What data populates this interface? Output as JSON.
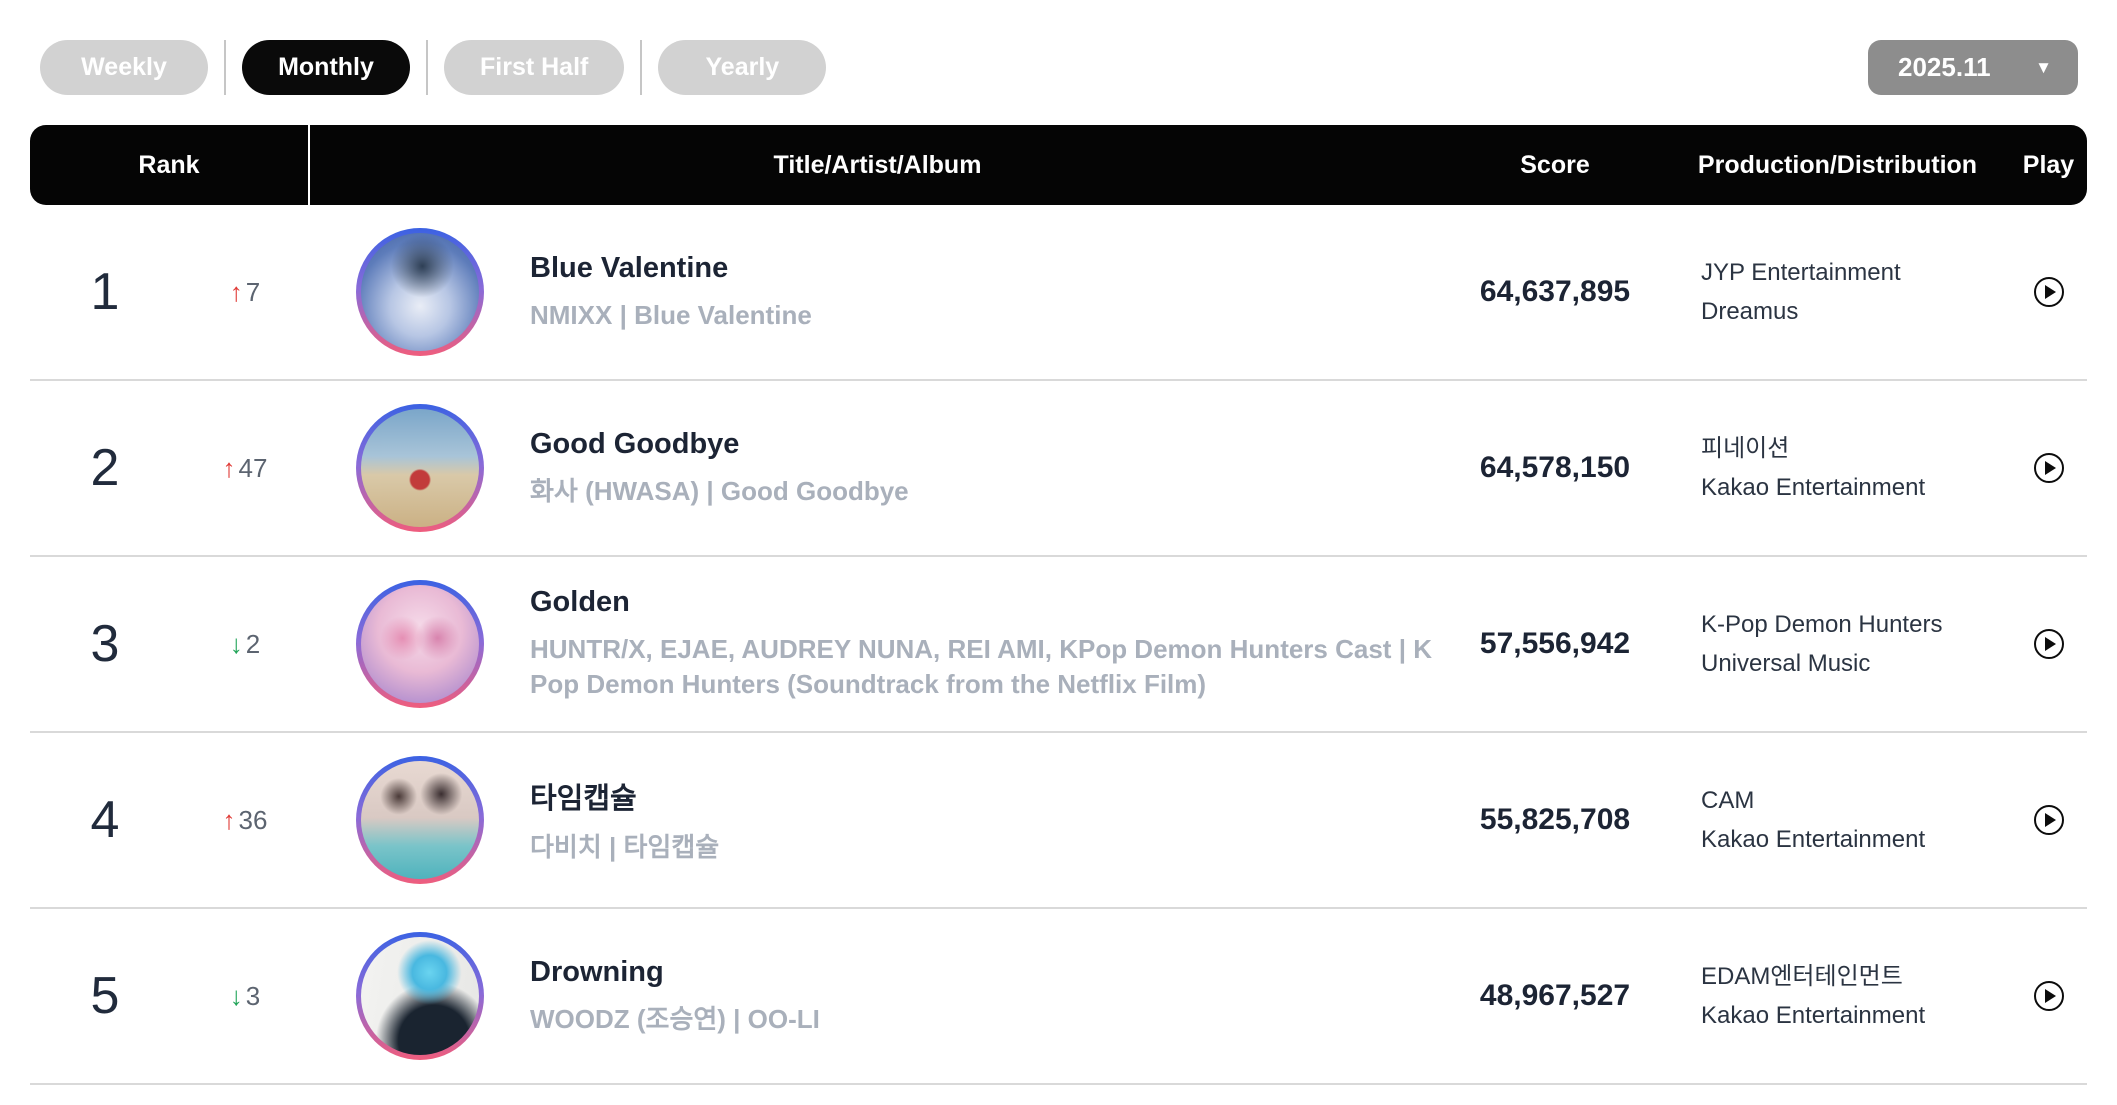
{
  "tabs": [
    {
      "label": "Weekly",
      "active": false
    },
    {
      "label": "Monthly",
      "active": true
    },
    {
      "label": "First Half",
      "active": false
    },
    {
      "label": "Yearly",
      "active": false
    }
  ],
  "period_selector": {
    "value": "2025.11",
    "caret": "▼"
  },
  "table": {
    "headers": {
      "rank": "Rank",
      "title": "Title/Artist/Album",
      "score": "Score",
      "production": "Production/Distribution",
      "play": "Play"
    }
  },
  "colors": {
    "rank_up": "#e03a36",
    "rank_down": "#23a55a",
    "ring_top": "#3b62e3",
    "ring_bottom": "#ef5d7d",
    "header_bg": "#050505",
    "active_tab_bg": "#0a0a0a",
    "inactive_tab_bg": "#d2d2d2"
  },
  "rows": [
    {
      "rank": "1",
      "change_arrow": "↑",
      "change_value": "7",
      "change_color": "#e03a36",
      "title": "Blue Valentine",
      "artist_album": "NMIXX | Blue Valentine",
      "score": "64,637,895",
      "production": "JYP Entertainment",
      "distribution": "Dreamus",
      "art_name": "album-cover-blue-valentine",
      "art": "radial-gradient(circle at 52% 28%, #2e3f55 0%, rgba(46,63,85,0) 30%), radial-gradient(circle at 50% 62%, #e9edf6 0%, #b7c6e4 32%, #5d7cba 68%, #3f5f9e 100%)"
    },
    {
      "rank": "2",
      "change_arrow": "↑",
      "change_value": "47",
      "change_color": "#e03a36",
      "title": "Good Goodbye",
      "artist_album": "화사 (HWASA) | Good Goodbye",
      "score": "64,578,150",
      "production": "피네이션",
      "distribution": "Kakao Entertainment",
      "art_name": "album-cover-good-goodbye",
      "art": "radial-gradient(circle at 50% 60%, #c23b3b 0%, #c23b3b 10%, rgba(194,59,59,0) 12%), linear-gradient(180deg, #7ba6c9 0%, #a8c4d8 40%, #d9c9a8 56%, #cbb185 100%)"
    },
    {
      "rank": "3",
      "change_arrow": "↓",
      "change_value": "2",
      "change_color": "#23a55a",
      "title": "Golden",
      "artist_album": "HUNTR/X, EJAE, AUDREY NUNA, REI AMI, KPop Demon Hunters Cast | KPop Demon Hunters (Soundtrack from the Netflix Film)",
      "score": "57,556,942",
      "production": "K-Pop Demon Hunters",
      "distribution": "Universal Music",
      "art_name": "album-cover-golden",
      "art": "radial-gradient(circle at 35% 45%, #e58fb4 0%, rgba(229,143,180,0) 22%), radial-gradient(circle at 65% 45%, #d884ae 0%, rgba(216,132,174,0) 22%), radial-gradient(circle at 50% 38%, #f6dcea 0%, #e9bad5 45%, #b893cf 78%, #8f7cc4 100%)"
    },
    {
      "rank": "4",
      "change_arrow": "↑",
      "change_value": "36",
      "change_color": "#e03a36",
      "title": "타임캡슐",
      "artist_album": "다비치 | 타임캡슐",
      "score": "55,825,708",
      "production": "CAM",
      "distribution": "Kakao Entertainment",
      "art_name": "album-cover-time-capsule",
      "art": "radial-gradient(circle at 32% 30%, #4a3a38 0%, rgba(74,58,56,0) 16%), radial-gradient(circle at 68% 28%, #3a2e30 0%, rgba(58,46,48,0) 18%), linear-gradient(180deg, #e8d9d2 0%, #d9c9c3 48%, #7ac4c9 72%, #4fb3bd 100%)"
    },
    {
      "rank": "5",
      "change_arrow": "↓",
      "change_value": "3",
      "change_color": "#23a55a",
      "title": "Drowning",
      "artist_album": "WOODZ (조승연) | OO-LI",
      "score": "48,967,527",
      "production": "EDAM엔터테인먼트",
      "distribution": "Kakao Entertainment",
      "art_name": "album-cover-drowning",
      "art": "radial-gradient(circle at 58% 30%, #6ad4f0 0%, #49b8e0 16%, rgba(73,184,224,0) 30%), radial-gradient(circle at 62% 88%, #1a2430 0%, #1a2430 28%, rgba(26,36,48,0) 46%), linear-gradient(100deg, #f3f3f1 0%, #e7e7e5 100%)"
    }
  ]
}
